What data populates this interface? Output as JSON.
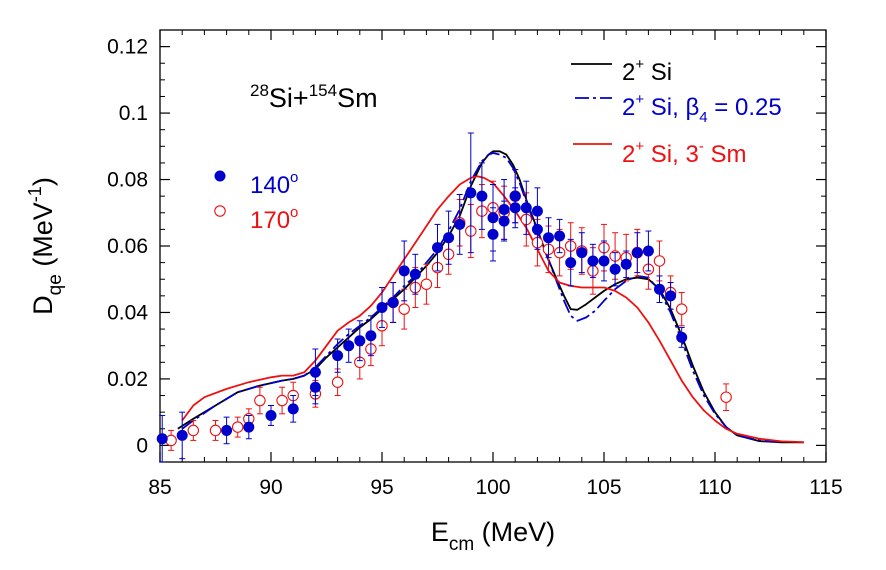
{
  "chart_data": {
    "type": "line",
    "title": "",
    "annotation": {
      "main": "Si+",
      "sup1": "28",
      "sup2": "154",
      "rest": "Sm"
    },
    "xlabel": {
      "main": "E",
      "sub": "cm",
      "rest": " (MeV)"
    },
    "ylabel": {
      "main": "D",
      "sub": "qe",
      "unit_pre": " (MeV",
      "unit_sup": "-1",
      "unit_post": ")"
    },
    "xlim": [
      85,
      115
    ],
    "ylim": [
      -0.005,
      0.125
    ],
    "xticks": [
      "85",
      "90",
      "95",
      "100",
      "105",
      "110",
      "115"
    ],
    "yticks": [
      "0",
      "0.02",
      "0.04",
      "0.06",
      "0.08",
      "0.1",
      "0.12"
    ],
    "grid": false,
    "legend_position": "top-right",
    "colors": {
      "black": "#000000",
      "blue": "#0000cc",
      "red": "#ee1111"
    },
    "lines": [
      {
        "id": "si2",
        "legend": {
          "main": "2",
          "sup": "+",
          "rest": " Si"
        },
        "color": "#000000",
        "dash": "solid",
        "x": [
          85.8,
          86.5,
          87.5,
          88.5,
          89.5,
          90.5,
          91,
          91.5,
          92,
          92.5,
          93,
          93.5,
          94,
          94.5,
          95,
          95.5,
          96,
          96.5,
          97,
          97.5,
          98,
          98.5,
          99,
          99.5,
          99.8,
          100,
          100.3,
          100.6,
          100.9,
          101.2,
          101.6,
          102,
          102.4,
          102.8,
          103.2,
          103.5,
          103.8,
          104.2,
          104.6,
          105,
          105.5,
          106,
          106.5,
          107,
          107.5,
          108,
          108.5,
          109,
          109.5,
          110,
          110.5,
          111,
          112,
          113,
          114
        ],
        "y": [
          0.005,
          0.008,
          0.012,
          0.016,
          0.018,
          0.0195,
          0.02,
          0.021,
          0.023,
          0.0265,
          0.0295,
          0.0325,
          0.0355,
          0.038,
          0.041,
          0.044,
          0.047,
          0.0505,
          0.054,
          0.058,
          0.063,
          0.069,
          0.078,
          0.085,
          0.0875,
          0.0885,
          0.0885,
          0.0875,
          0.0845,
          0.08,
          0.072,
          0.065,
          0.0575,
          0.051,
          0.045,
          0.041,
          0.0408,
          0.0425,
          0.0445,
          0.0465,
          0.0485,
          0.05,
          0.0505,
          0.05,
          0.047,
          0.041,
          0.033,
          0.024,
          0.016,
          0.01,
          0.0055,
          0.003,
          0.0013,
          0.0009,
          0.0009
        ]
      },
      {
        "id": "si2-beta4",
        "legend": {
          "main": "2",
          "sup": "+",
          "mid": " Si, β",
          "sub": "4",
          "rest": " = 0.25"
        },
        "color": "#0000cc",
        "dash": "dashdot",
        "x": [
          86,
          86.5,
          87.5,
          88.5,
          89.5,
          90.5,
          91,
          91.5,
          92,
          92.5,
          93,
          93.5,
          94,
          94.5,
          95,
          95.5,
          96,
          96.5,
          97,
          97.5,
          98,
          98.5,
          99,
          99.5,
          99.8,
          100,
          100.3,
          100.6,
          100.9,
          101.2,
          101.6,
          102,
          102.4,
          102.8,
          103.2,
          103.5,
          103.8,
          104.2,
          104.6,
          105,
          105.5,
          106,
          106.5,
          107,
          107.5,
          108,
          108.5,
          109,
          109.5,
          110,
          110.5,
          111,
          112,
          113
        ],
        "y": [
          0.005,
          0.0075,
          0.012,
          0.016,
          0.018,
          0.0195,
          0.02,
          0.021,
          0.0235,
          0.027,
          0.0305,
          0.0335,
          0.036,
          0.0385,
          0.0415,
          0.0445,
          0.048,
          0.051,
          0.055,
          0.059,
          0.0645,
          0.071,
          0.0795,
          0.0855,
          0.0875,
          0.088,
          0.0875,
          0.0865,
          0.0835,
          0.079,
          0.0715,
          0.0645,
          0.0575,
          0.0505,
          0.0435,
          0.039,
          0.0375,
          0.0385,
          0.0405,
          0.0435,
          0.047,
          0.0495,
          0.051,
          0.0505,
          0.0465,
          0.04,
          0.0315,
          0.0225,
          0.015,
          0.0095,
          0.0055,
          0.003,
          0.0015,
          0.001
        ]
      },
      {
        "id": "si2-sm3",
        "legend": {
          "main": "2",
          "sup": "+",
          "mid": " Si, 3",
          "sup2": "-",
          "rest": " Sm"
        },
        "color": "#ee1111",
        "dash": "solid",
        "x": [
          86,
          86.5,
          87,
          88,
          89,
          90,
          90.5,
          91,
          91.5,
          92,
          92.5,
          93,
          93.5,
          94,
          94.5,
          95,
          95.5,
          96,
          96.5,
          97,
          97.5,
          98,
          98.5,
          99,
          99.3,
          99.6,
          100,
          100.5,
          101,
          101.5,
          102,
          102.5,
          103,
          103.5,
          104,
          104.5,
          105,
          105.5,
          106,
          106.5,
          107,
          107.5,
          108,
          108.5,
          109,
          109.5,
          110,
          110.5,
          111,
          112,
          113,
          114
        ],
        "y": [
          0.0075,
          0.012,
          0.0145,
          0.017,
          0.019,
          0.0205,
          0.021,
          0.021,
          0.022,
          0.0255,
          0.03,
          0.0345,
          0.037,
          0.039,
          0.042,
          0.046,
          0.051,
          0.056,
          0.061,
          0.066,
          0.071,
          0.075,
          0.0785,
          0.0805,
          0.081,
          0.0805,
          0.079,
          0.075,
          0.0705,
          0.0655,
          0.059,
          0.0525,
          0.049,
          0.048,
          0.0475,
          0.0475,
          0.0475,
          0.0465,
          0.0445,
          0.0415,
          0.037,
          0.0315,
          0.0255,
          0.0195,
          0.0145,
          0.0105,
          0.0075,
          0.005,
          0.0035,
          0.002,
          0.0012,
          0.001
        ]
      }
    ],
    "series": [
      {
        "id": "s140",
        "name": {
          "main": "140",
          "sup": "o"
        },
        "color": "#0000cc",
        "marker": "filled-circle",
        "x": [
          85.1,
          86,
          88,
          89,
          90,
          91,
          92,
          92,
          93,
          93.5,
          94,
          94.5,
          95,
          95.5,
          96,
          96.5,
          97.5,
          98,
          98.5,
          99,
          99.5,
          100,
          100,
          100.5,
          100.5,
          101,
          101,
          101.5,
          102,
          102,
          102.5,
          103,
          103.5,
          104,
          104.5,
          105,
          105.5,
          106,
          106.5,
          107,
          107.5,
          108,
          108.5
        ],
        "y": [
          0.002,
          0.003,
          0.0045,
          0.0055,
          0.009,
          0.011,
          0.022,
          0.0175,
          0.027,
          0.03,
          0.0315,
          0.033,
          0.0415,
          0.043,
          0.0525,
          0.0515,
          0.0595,
          0.0625,
          0.0665,
          0.076,
          0.075,
          0.0635,
          0.0685,
          0.071,
          0.0675,
          0.0715,
          0.075,
          0.0715,
          0.0705,
          0.065,
          0.0625,
          0.063,
          0.055,
          0.058,
          0.0555,
          0.0555,
          0.053,
          0.0545,
          0.058,
          0.0585,
          0.047,
          0.045,
          0.0325
        ],
        "err": [
          0.007,
          0.007,
          0.004,
          0.0035,
          0.003,
          0.004,
          0.007,
          0.005,
          0.005,
          0.005,
          0.006,
          0.006,
          0.006,
          0.006,
          0.009,
          0.006,
          0.007,
          0.008,
          0.009,
          0.018,
          0.01,
          0.008,
          0.01,
          0.009,
          0.006,
          0.006,
          0.008,
          0.008,
          0.007,
          0.006,
          0.006,
          0.005,
          0.007,
          0.006,
          0.005,
          0.006,
          0.005,
          0.004,
          0.006,
          0.006,
          0.004,
          0.004,
          0.003
        ]
      },
      {
        "id": "s170",
        "name": {
          "main": "170",
          "sup": "o"
        },
        "color": "#ee1111",
        "marker": "open-circle",
        "x": [
          85.5,
          86.5,
          87.5,
          88.5,
          89,
          89.5,
          90.5,
          91,
          92,
          93,
          94,
          94.5,
          95,
          95.5,
          96,
          96.5,
          97,
          97.5,
          98,
          98.5,
          99,
          99.5,
          100,
          100.5,
          101,
          101.5,
          102,
          102.5,
          103,
          103.5,
          104,
          104.5,
          105,
          105.5,
          106,
          106.5,
          107,
          107.5,
          108,
          108.5,
          110.5
        ],
        "y": [
          0.0015,
          0.0045,
          0.0045,
          0.0055,
          0.008,
          0.0135,
          0.0135,
          0.015,
          0.0155,
          0.019,
          0.025,
          0.029,
          0.036,
          0.043,
          0.041,
          0.0475,
          0.0485,
          0.0535,
          0.0575,
          0.067,
          0.0645,
          0.0705,
          0.0715,
          0.07,
          0.075,
          0.068,
          0.061,
          0.059,
          0.058,
          0.06,
          0.0585,
          0.0525,
          0.0595,
          0.057,
          0.0565,
          0.058,
          0.053,
          0.0555,
          0.046,
          0.041,
          0.0145
        ],
        "err": [
          0.003,
          0.003,
          0.003,
          0.003,
          0.003,
          0.004,
          0.004,
          0.004,
          0.004,
          0.004,
          0.005,
          0.005,
          0.006,
          0.006,
          0.006,
          0.006,
          0.006,
          0.006,
          0.006,
          0.007,
          0.008,
          0.008,
          0.008,
          0.008,
          0.008,
          0.008,
          0.007,
          0.007,
          0.007,
          0.007,
          0.007,
          0.007,
          0.007,
          0.007,
          0.007,
          0.007,
          0.006,
          0.006,
          0.005,
          0.005,
          0.004
        ]
      }
    ]
  }
}
